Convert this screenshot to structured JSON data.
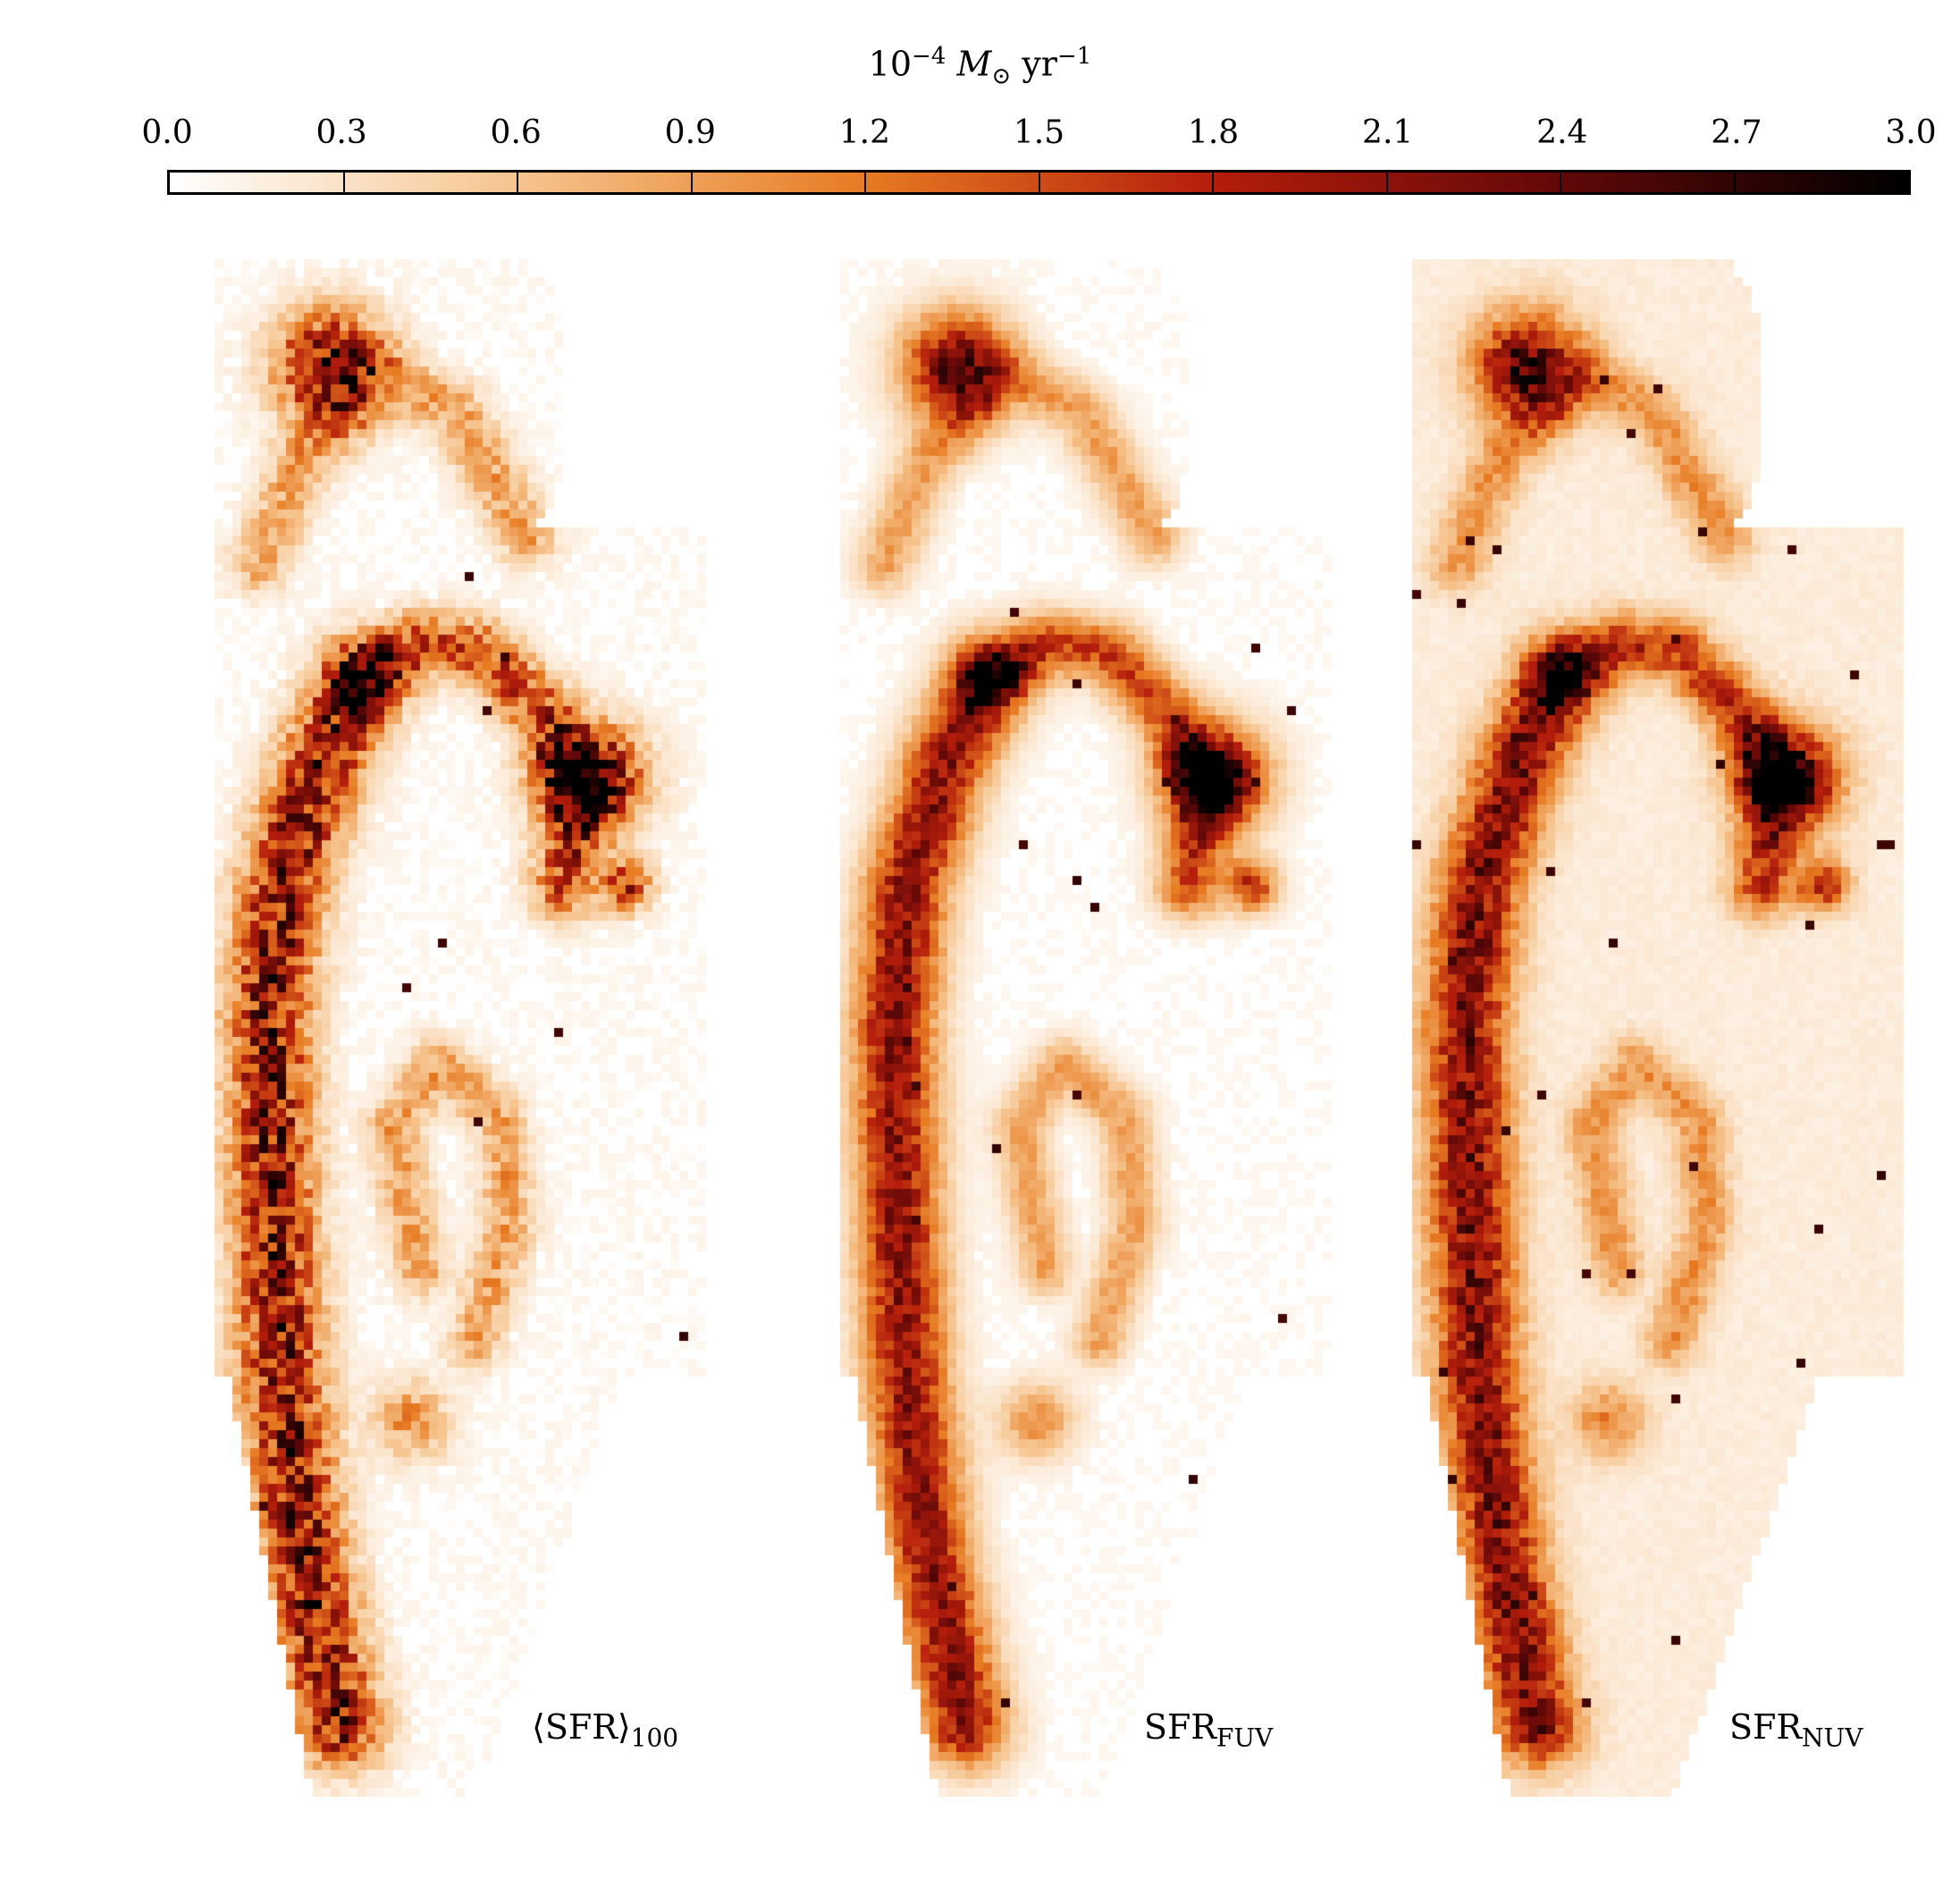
{
  "chart_data": {
    "type": "heatmap",
    "colorbar": {
      "title": {
        "base": "10",
        "exponent": "−4",
        "symbol": "M",
        "subscript": "⊙",
        "unit": "yr",
        "unit_exponent": "−1"
      },
      "min": 0.0,
      "max": 3.0,
      "ticks": [
        "0.0",
        "0.3",
        "0.6",
        "0.9",
        "1.2",
        "1.5",
        "1.8",
        "2.1",
        "2.4",
        "2.7",
        "3.0"
      ],
      "colormap": [
        "#ffffff",
        "#f6c48e",
        "#e77b22",
        "#b41d0b",
        "#620808",
        "#000000"
      ],
      "placement": "top"
    },
    "panels": [
      {
        "label_main": "⟨SFR⟩",
        "label_sub": "100",
        "noise": 0.45,
        "hotspots": 0.3,
        "tiles": false
      },
      {
        "label_main": "SFR",
        "label_sub": "FUV",
        "noise": 0.2,
        "hotspots": 0.6,
        "tiles": false
      },
      {
        "label_main": "SFR",
        "label_sub": "NUV",
        "noise": 0.25,
        "hotspots": 1.0,
        "tiles": true
      }
    ]
  }
}
